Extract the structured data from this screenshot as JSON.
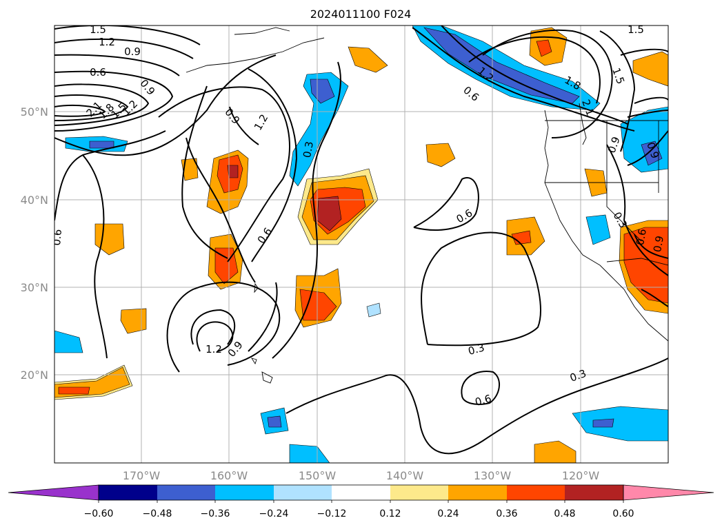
{
  "title": "2024011100 F024",
  "lat_labels": [
    "50°N",
    "40°N",
    "30°N",
    "20°N"
  ],
  "lon_labels": [
    "170°W",
    "160°W",
    "150°W",
    "140°W",
    "130°W",
    "120°W"
  ],
  "colorbar": {
    "tick_labels": [
      "−0.60",
      "−0.48",
      "−0.36",
      "−0.24",
      "−0.12",
      "0.12",
      "0.24",
      "0.36",
      "0.48",
      "0.60"
    ],
    "colors": [
      "#9932cc",
      "#00008b",
      "#3d5fd0",
      "#00bfff",
      "#b0e2ff",
      "#ffffff",
      "#fde98b",
      "#ffa500",
      "#ff4500",
      "#b22222",
      "#ff88aa"
    ]
  },
  "contour_labels": [
    "1.5",
    "1.2",
    "0.9",
    "0.6",
    "0.9",
    "2.1",
    "1.8",
    "1.5",
    "1.2",
    "0.9",
    "1.2",
    "0.3",
    "0.6",
    "1.2",
    "0.9",
    "0.6",
    "0.3",
    "0.6",
    "0.3",
    "0.6",
    "1.8",
    "1.5",
    "2.1",
    "1.5",
    "0.9",
    "0.9",
    "0.3",
    "0.6",
    "0.9",
    "1.2",
    "0.6"
  ],
  "colors": {
    "frame": "#000000",
    "grid": "#b0b0b0",
    "contour": "#000000"
  }
}
